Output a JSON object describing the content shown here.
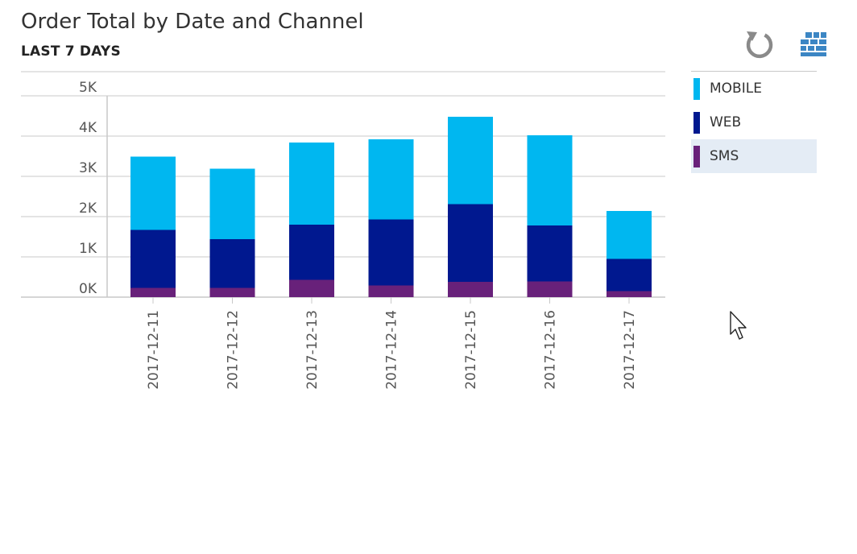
{
  "header": {
    "title": "Order Total by Date and Channel",
    "subtitle": "LAST 7 DAYS"
  },
  "toolbar": {
    "refresh_icon": "refresh-icon",
    "grid_icon": "grid-view-icon"
  },
  "colors": {
    "mobile": "#00b7f0",
    "web": "#00188f",
    "sms": "#68217a",
    "gridline": "#c8c8c8",
    "axis_text": "#555555",
    "legend_selected_bg": "#e4ecf5"
  },
  "legend": {
    "selected_index": 2,
    "items": [
      {
        "label": "MOBILE",
        "color": "#00b7f0"
      },
      {
        "label": "WEB",
        "color": "#00188f"
      },
      {
        "label": "SMS",
        "color": "#68217a"
      }
    ]
  },
  "chart_data": {
    "type": "bar",
    "stacked": true,
    "title": "Order Total by Date and Channel",
    "subtitle": "LAST 7 DAYS",
    "xlabel": "",
    "ylabel": "",
    "categories": [
      "2017-12-11",
      "2017-12-12",
      "2017-12-13",
      "2017-12-14",
      "2017-12-15",
      "2017-12-16",
      "2017-12-17"
    ],
    "yticks": [
      "0K",
      "1K",
      "2K",
      "3K",
      "4K",
      "5K"
    ],
    "ylim": [
      0,
      5000
    ],
    "grid": true,
    "legend_position": "right",
    "series": [
      {
        "name": "SMS",
        "color": "#68217a",
        "values": [
          230,
          230,
          430,
          290,
          380,
          390,
          150
        ]
      },
      {
        "name": "WEB",
        "color": "#00188f",
        "values": [
          1440,
          1210,
          1370,
          1640,
          1930,
          1390,
          800
        ]
      },
      {
        "name": "MOBILE",
        "color": "#00b7f0",
        "values": [
          1820,
          1750,
          2040,
          1990,
          2170,
          2240,
          1190
        ]
      }
    ]
  }
}
